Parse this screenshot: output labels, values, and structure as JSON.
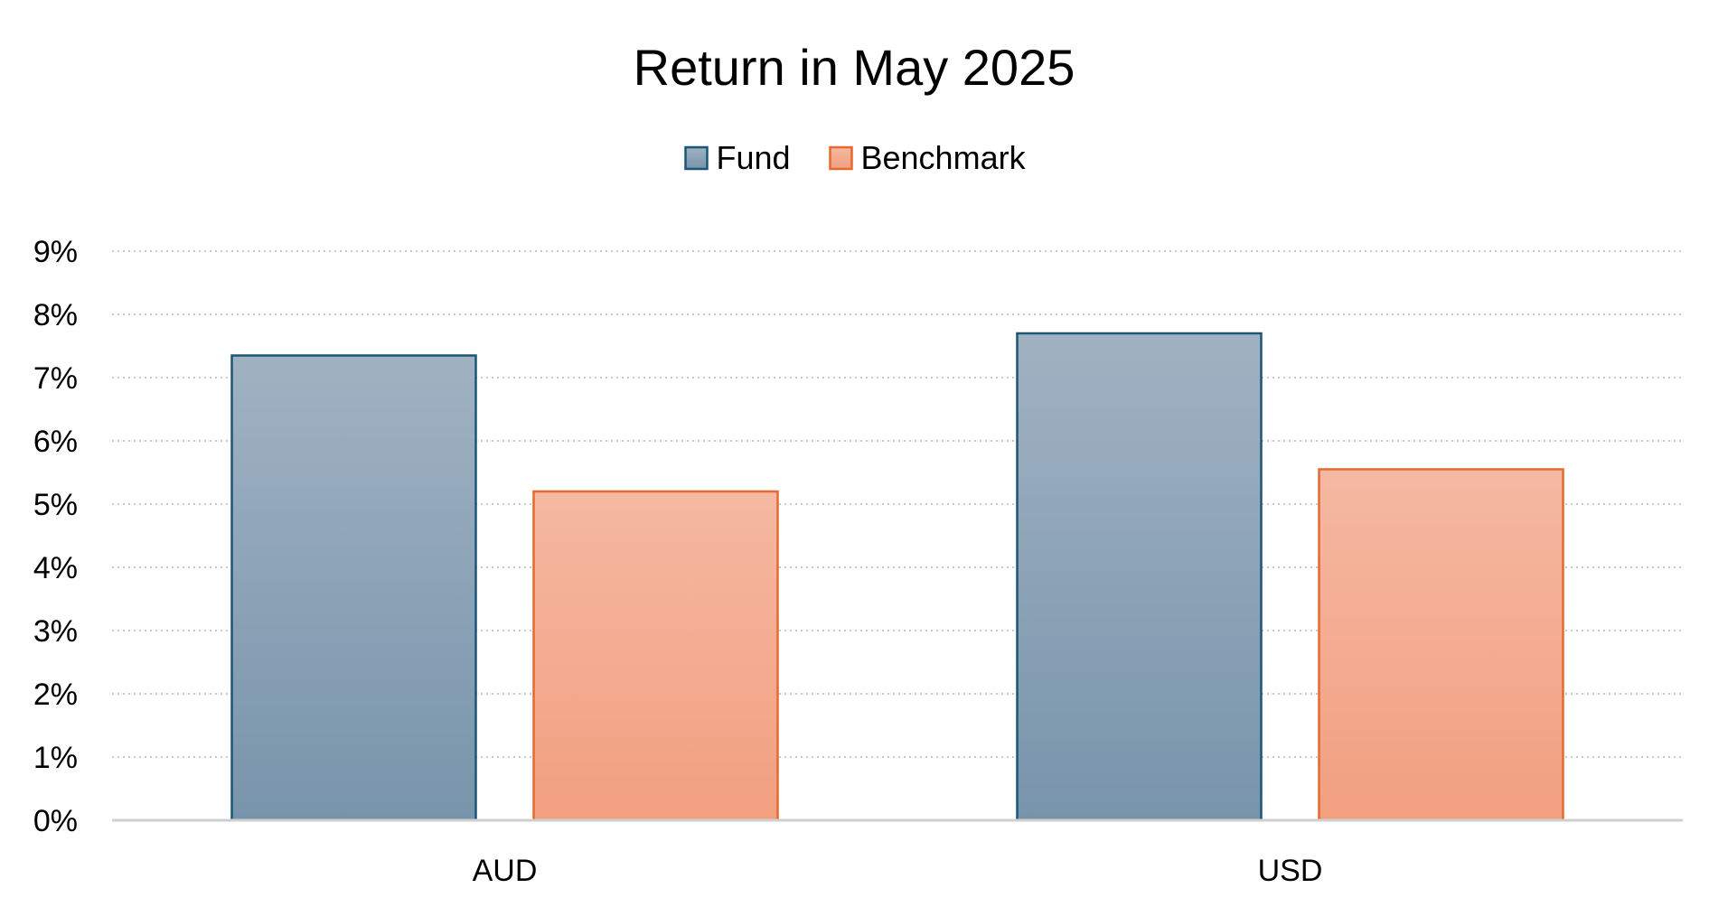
{
  "chart_data": {
    "type": "bar",
    "title": "Return in May 2025",
    "categories": [
      "AUD",
      "USD"
    ],
    "series": [
      {
        "name": "Fund",
        "values": [
          7.35,
          7.7
        ],
        "color_top": "#a0b2c2",
        "color_bottom": "#7894ab",
        "stroke": "#1b5676"
      },
      {
        "name": "Benchmark",
        "values": [
          5.2,
          5.55
        ],
        "color_top": "#f5b8a2",
        "color_bottom": "#f29f80",
        "stroke": "#e46a2e"
      }
    ],
    "ylim": [
      0,
      9
    ],
    "yticks": [
      "0%",
      "1%",
      "2%",
      "3%",
      "4%",
      "5%",
      "6%",
      "7%",
      "8%",
      "9%"
    ],
    "xlabel": "",
    "ylabel": "",
    "grid": true,
    "legend": "top-center"
  }
}
